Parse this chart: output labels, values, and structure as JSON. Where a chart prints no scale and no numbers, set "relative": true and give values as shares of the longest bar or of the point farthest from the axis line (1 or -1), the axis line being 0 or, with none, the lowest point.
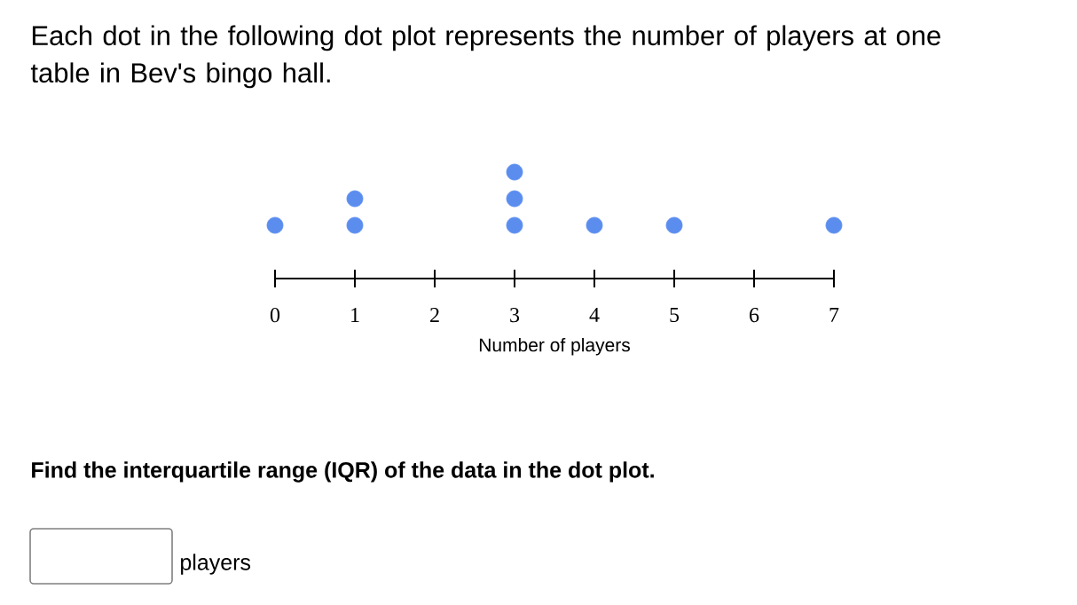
{
  "chart_data": {
    "type": "scatter",
    "title": "Each dot in the following dot plot represents the number of players at one table in Bev's bingo hall.",
    "xlabel": "Number of players",
    "x": [
      0,
      1,
      1,
      3,
      3,
      3,
      4,
      5,
      7
    ],
    "values": [
      0.5,
      0.5,
      0.75,
      0.5,
      0.75,
      1,
      0.5,
      0.5,
      0.5
    ],
    "relative": true,
    "color": "#5b8def",
    "xlim": [
      0,
      7
    ],
    "xticks": [
      0,
      1,
      2,
      3,
      4,
      5,
      6,
      7
    ],
    "tick_labels": "x",
    "marker": "circle",
    "grid": false,
    "annotations": [
      "Find the interquartile range (IQR) of the data in the dot plot.",
      "players"
    ]
  }
}
